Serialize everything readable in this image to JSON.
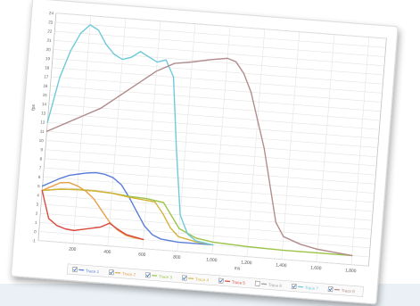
{
  "chart_data": {
    "type": "line",
    "title": "",
    "xlabel": "ms",
    "ylabel": "fps",
    "xlim": [
      0,
      1900
    ],
    "ylim": [
      -1,
      24
    ],
    "x_ticks": [
      "200",
      "400",
      "600",
      "800",
      "1,000",
      "1,200",
      "1,400",
      "1,600",
      "1,800"
    ],
    "x_tick_values": [
      200,
      400,
      600,
      800,
      1000,
      1200,
      1400,
      1600,
      1800
    ],
    "y_ticks": [
      "-1",
      "0",
      "1",
      "2",
      "3",
      "4",
      "5",
      "6",
      "7",
      "8",
      "9",
      "10",
      "11",
      "12",
      "13",
      "14",
      "15",
      "16",
      "17",
      "18",
      "19",
      "20",
      "21",
      "22",
      "23",
      "24"
    ],
    "grid": true,
    "legend_position": "bottom",
    "series": [
      {
        "name": "Trace 1",
        "color": "#5b7fd6",
        "checked": true,
        "x": [
          0,
          50,
          100,
          150,
          200,
          250,
          300,
          350,
          400,
          450,
          500,
          550,
          600,
          650,
          700,
          750,
          800,
          900,
          1000
        ],
        "y": [
          5,
          5.5,
          6,
          6.4,
          6.6,
          6.8,
          6.9,
          6.8,
          6.5,
          5.8,
          4.5,
          3,
          1.5,
          0.6,
          0.2,
          0.1,
          0,
          0,
          0
        ]
      },
      {
        "name": "Trace 2",
        "color": "#e8a04a",
        "checked": true,
        "x": [
          0,
          50,
          100,
          150,
          200,
          250,
          300,
          350,
          400,
          450,
          500,
          550,
          600
        ],
        "y": [
          4.5,
          5,
          5.5,
          5.6,
          5.3,
          4.8,
          4,
          2.8,
          1.6,
          0.8,
          0.3,
          0.1,
          0
        ]
      },
      {
        "name": "Trace 3",
        "color": "#9bc34a",
        "checked": true,
        "x": [
          0,
          100,
          200,
          300,
          400,
          500,
          600,
          700,
          800,
          900,
          1000,
          1100,
          1200,
          1400,
          1600,
          1800
        ],
        "y": [
          4.5,
          4.8,
          4.9,
          4.9,
          4.8,
          4.6,
          4.5,
          4.2,
          1.5,
          0.6,
          0.3,
          0.2,
          0.1,
          0,
          0,
          0
        ]
      },
      {
        "name": "Trace 4",
        "color": "#d4b23a",
        "checked": true,
        "x": [
          0,
          100,
          200,
          300,
          400,
          500,
          600,
          650,
          700,
          750,
          800,
          900,
          1000
        ],
        "y": [
          4.5,
          4.8,
          4.9,
          4.9,
          4.8,
          4.5,
          4.3,
          4.2,
          3,
          1.5,
          0.6,
          0.2,
          0
        ]
      },
      {
        "name": "Trace 5",
        "color": "#d94a3e",
        "checked": true,
        "x": [
          0,
          50,
          100,
          150,
          200,
          250,
          300,
          350,
          400,
          450,
          500,
          550,
          600
        ],
        "y": [
          4.5,
          1.5,
          0.8,
          0.5,
          0.4,
          0.6,
          0.8,
          1,
          1.5,
          0.9,
          0.4,
          0.2,
          0
        ]
      },
      {
        "name": "Trace 6",
        "color": "#9a9a9a",
        "checked": false,
        "x": [],
        "y": []
      },
      {
        "name": "Trace 7",
        "color": "#6fc9d8",
        "checked": true,
        "x": [
          0,
          50,
          100,
          150,
          200,
          250,
          300,
          350,
          400,
          450,
          500,
          550,
          600,
          650,
          700,
          750,
          800,
          850,
          900,
          1000
        ],
        "y": [
          12,
          17,
          20,
          22,
          23,
          22.5,
          21,
          20,
          19.5,
          19.8,
          20.5,
          20,
          19.5,
          19.8,
          18,
          10,
          3,
          1,
          0.3,
          0
        ]
      },
      {
        "name": "Trace 8",
        "color": "#b28c8c",
        "checked": true,
        "x": [
          0,
          100,
          200,
          300,
          400,
          500,
          600,
          700,
          800,
          900,
          1000,
          1050,
          1100,
          1150,
          1200,
          1250,
          1300,
          1350,
          1400,
          1500,
          1600,
          1700,
          1800
        ],
        "y": [
          11,
          12,
          13,
          14,
          15.5,
          17,
          18.5,
          19.5,
          19.8,
          20.2,
          20.5,
          20.2,
          19,
          17,
          14,
          11,
          7,
          3,
          1.5,
          0.8,
          0.4,
          0.2,
          0
        ]
      }
    ]
  }
}
